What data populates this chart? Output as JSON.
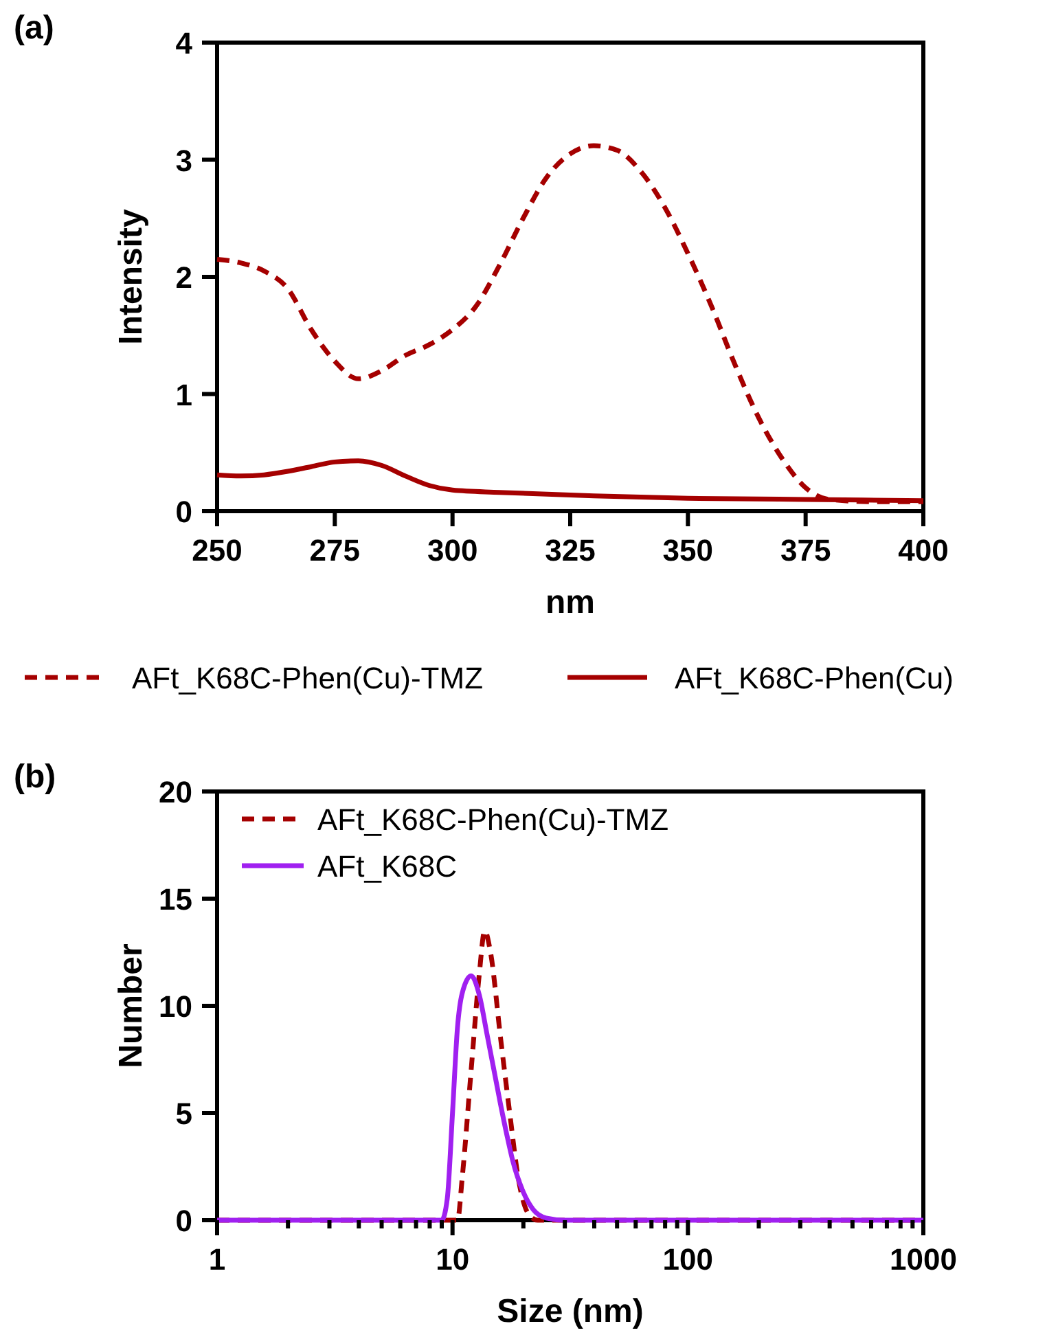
{
  "chart_data": [
    {
      "type": "line",
      "title": "(a)",
      "xlabel": "nm",
      "ylabel": "Intensity",
      "xlim": [
        250,
        400
      ],
      "xticks": [
        250,
        275,
        300,
        325,
        350,
        375,
        400
      ],
      "ylim": [
        0,
        4
      ],
      "yticks": [
        0,
        1,
        2,
        3,
        4
      ],
      "grid": false,
      "legend": "bottom",
      "series": [
        {
          "name": "AFt_K68C-Phen(Cu)-TMZ",
          "color": "#a50000",
          "line_style": "dashed",
          "x": [
            250,
            255,
            260,
            265,
            270,
            275,
            280,
            285,
            290,
            295,
            300,
            305,
            310,
            315,
            320,
            325,
            330,
            335,
            340,
            345,
            350,
            355,
            360,
            365,
            370,
            375,
            380,
            390,
            400
          ],
          "values": [
            2.15,
            2.12,
            2.05,
            1.9,
            1.55,
            1.28,
            1.13,
            1.2,
            1.33,
            1.42,
            1.55,
            1.75,
            2.1,
            2.5,
            2.85,
            3.05,
            3.12,
            3.08,
            2.9,
            2.6,
            2.2,
            1.75,
            1.25,
            0.8,
            0.45,
            0.2,
            0.1,
            0.08,
            0.08
          ]
        },
        {
          "name": "AFt_K68C-Phen(Cu)",
          "color": "#a50000",
          "line_style": "solid",
          "x": [
            250,
            255,
            260,
            265,
            270,
            275,
            280,
            285,
            290,
            295,
            300,
            310,
            330,
            350,
            375,
            400
          ],
          "values": [
            0.31,
            0.3,
            0.31,
            0.34,
            0.38,
            0.42,
            0.43,
            0.39,
            0.3,
            0.22,
            0.18,
            0.16,
            0.13,
            0.11,
            0.1,
            0.09
          ]
        }
      ]
    },
    {
      "type": "line",
      "title": "(b)",
      "xlabel": "Size (nm)",
      "ylabel": "Number",
      "log": "x",
      "xlim": [
        1,
        1000
      ],
      "xticks": [
        1,
        {
          "value": 2,
          "label": null
        },
        {
          "value": 3,
          "label": null
        },
        {
          "value": 4,
          "label": null
        },
        {
          "value": 5,
          "label": null
        },
        {
          "value": 6,
          "label": null
        },
        {
          "value": 7,
          "label": null
        },
        {
          "value": 8,
          "label": null
        },
        {
          "value": 9,
          "label": null
        },
        10,
        {
          "value": 20,
          "label": null
        },
        {
          "value": 30,
          "label": null
        },
        {
          "value": 40,
          "label": null
        },
        {
          "value": 50,
          "label": null
        },
        {
          "value": 60,
          "label": null
        },
        {
          "value": 70,
          "label": null
        },
        {
          "value": 80,
          "label": null
        },
        {
          "value": 90,
          "label": null
        },
        100,
        {
          "value": 200,
          "label": null
        },
        {
          "value": 300,
          "label": null
        },
        {
          "value": 400,
          "label": null
        },
        {
          "value": 500,
          "label": null
        },
        {
          "value": 600,
          "label": null
        },
        {
          "value": 700,
          "label": null
        },
        {
          "value": 800,
          "label": null
        },
        {
          "value": 900,
          "label": null
        },
        1000
      ],
      "ylim": [
        0,
        20
      ],
      "yticks": [
        0,
        5,
        10,
        15,
        20
      ],
      "grid": false,
      "legend": "top left",
      "series": [
        {
          "name": "AFt_K68C-Phen(Cu)-TMZ",
          "color": "#a50000",
          "line_style": "dashed",
          "x": [
            1,
            10.5,
            11,
            12,
            13,
            13.7,
            14.5,
            16,
            17.5,
            19,
            21,
            23,
            1000
          ],
          "values": [
            0,
            0,
            2,
            7,
            11.5,
            13.5,
            12.5,
            8.5,
            5,
            2,
            0.3,
            0,
            0
          ]
        },
        {
          "name": "AFt_K68C",
          "color": "#a020f0",
          "line_style": "solid",
          "x": [
            1,
            9,
            9.5,
            10,
            10.5,
            11,
            12,
            13,
            14,
            15,
            16,
            17,
            18,
            20,
            22,
            25,
            30,
            1000
          ],
          "values": [
            0,
            0,
            1,
            5,
            9,
            10.6,
            11.4,
            10.5,
            8.7,
            7,
            5.4,
            4,
            2.8,
            1.3,
            0.5,
            0.1,
            0,
            0
          ]
        }
      ]
    }
  ]
}
